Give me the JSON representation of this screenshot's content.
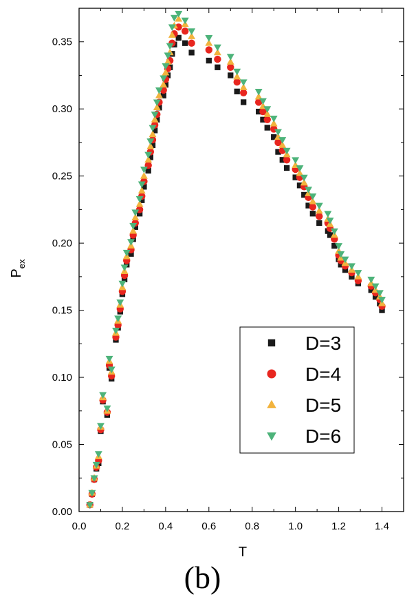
{
  "chart_data": {
    "type": "scatter",
    "xlabel": "T",
    "ylabel": {
      "main": "P",
      "subscript": "ex"
    },
    "xlim": [
      0.0,
      1.5
    ],
    "ylim": [
      0.0,
      0.375
    ],
    "xticks": [
      "0.0",
      "0.2",
      "0.4",
      "0.6",
      "0.8",
      "1.0",
      "1.2",
      "1.4"
    ],
    "yticks": [
      "0.00",
      "0.05",
      "0.10",
      "0.15",
      "0.20",
      "0.25",
      "0.30",
      "0.35"
    ],
    "grid": false,
    "legend_position": "bottom-right",
    "x": [
      0.05,
      0.06,
      0.07,
      0.08,
      0.09,
      0.1,
      0.11,
      0.13,
      0.14,
      0.15,
      0.17,
      0.18,
      0.19,
      0.2,
      0.21,
      0.22,
      0.24,
      0.25,
      0.26,
      0.28,
      0.29,
      0.3,
      0.32,
      0.33,
      0.34,
      0.35,
      0.36,
      0.37,
      0.39,
      0.4,
      0.41,
      0.42,
      0.43,
      0.44,
      0.46,
      0.49,
      0.52,
      0.6,
      0.64,
      0.7,
      0.73,
      0.76,
      0.83,
      0.85,
      0.87,
      0.9,
      0.92,
      0.94,
      0.96,
      1.0,
      1.02,
      1.04,
      1.06,
      1.08,
      1.11,
      1.15,
      1.16,
      1.18,
      1.2,
      1.21,
      1.23,
      1.26,
      1.29,
      1.35,
      1.37,
      1.39,
      1.4
    ],
    "series": [
      {
        "name": "D=3",
        "marker": "square",
        "color": "#1a1a1a",
        "values": [
          0.005,
          0.013,
          0.024,
          0.032,
          0.036,
          0.06,
          0.082,
          0.072,
          0.107,
          0.099,
          0.128,
          0.137,
          0.149,
          0.162,
          0.173,
          0.184,
          0.192,
          0.203,
          0.212,
          0.222,
          0.232,
          0.242,
          0.254,
          0.264,
          0.273,
          0.284,
          0.292,
          0.301,
          0.31,
          0.318,
          0.325,
          0.331,
          0.341,
          0.348,
          0.353,
          0.349,
          0.342,
          0.336,
          0.331,
          0.325,
          0.313,
          0.305,
          0.298,
          0.292,
          0.286,
          0.279,
          0.268,
          0.262,
          0.256,
          0.249,
          0.243,
          0.236,
          0.228,
          0.222,
          0.215,
          0.209,
          0.206,
          0.198,
          0.188,
          0.184,
          0.18,
          0.175,
          0.17,
          0.165,
          0.16,
          0.155,
          0.15
        ]
      },
      {
        "name": "D=4",
        "marker": "circle",
        "color": "#e8261f",
        "values": [
          0.005,
          0.013,
          0.024,
          0.033,
          0.038,
          0.061,
          0.083,
          0.074,
          0.109,
          0.101,
          0.13,
          0.139,
          0.151,
          0.164,
          0.176,
          0.187,
          0.195,
          0.206,
          0.215,
          0.225,
          0.235,
          0.246,
          0.258,
          0.268,
          0.277,
          0.288,
          0.296,
          0.305,
          0.314,
          0.322,
          0.33,
          0.336,
          0.349,
          0.356,
          0.361,
          0.358,
          0.349,
          0.344,
          0.337,
          0.331,
          0.32,
          0.312,
          0.305,
          0.298,
          0.292,
          0.285,
          0.275,
          0.269,
          0.262,
          0.255,
          0.249,
          0.242,
          0.234,
          0.227,
          0.22,
          0.215,
          0.211,
          0.203,
          0.191,
          0.187,
          0.183,
          0.178,
          0.172,
          0.168,
          0.163,
          0.158,
          0.153
        ]
      },
      {
        "name": "D=5",
        "marker": "triangle-up",
        "color": "#f2b33d",
        "values": [
          0.005,
          0.014,
          0.025,
          0.034,
          0.041,
          0.063,
          0.085,
          0.075,
          0.112,
          0.104,
          0.133,
          0.142,
          0.154,
          0.167,
          0.179,
          0.19,
          0.198,
          0.209,
          0.219,
          0.229,
          0.239,
          0.25,
          0.262,
          0.272,
          0.281,
          0.292,
          0.301,
          0.31,
          0.318,
          0.327,
          0.335,
          0.342,
          0.355,
          0.362,
          0.367,
          0.363,
          0.354,
          0.349,
          0.342,
          0.335,
          0.324,
          0.316,
          0.309,
          0.302,
          0.296,
          0.289,
          0.279,
          0.273,
          0.266,
          0.258,
          0.252,
          0.245,
          0.237,
          0.231,
          0.224,
          0.218,
          0.214,
          0.206,
          0.194,
          0.189,
          0.185,
          0.18,
          0.175,
          0.17,
          0.165,
          0.16,
          0.155
        ]
      },
      {
        "name": "D=6",
        "marker": "triangle-down",
        "color": "#4db37a",
        "values": [
          0.005,
          0.014,
          0.025,
          0.035,
          0.043,
          0.064,
          0.087,
          0.077,
          0.114,
          0.106,
          0.135,
          0.144,
          0.156,
          0.17,
          0.182,
          0.193,
          0.201,
          0.213,
          0.223,
          0.233,
          0.244,
          0.255,
          0.266,
          0.276,
          0.286,
          0.296,
          0.305,
          0.314,
          0.323,
          0.332,
          0.34,
          0.347,
          0.361,
          0.368,
          0.371,
          0.366,
          0.358,
          0.353,
          0.346,
          0.339,
          0.328,
          0.32,
          0.313,
          0.306,
          0.3,
          0.293,
          0.283,
          0.277,
          0.269,
          0.262,
          0.256,
          0.249,
          0.24,
          0.235,
          0.228,
          0.222,
          0.217,
          0.209,
          0.198,
          0.192,
          0.188,
          0.183,
          0.178,
          0.173,
          0.168,
          0.163,
          0.158
        ]
      }
    ]
  },
  "caption": "(b)"
}
